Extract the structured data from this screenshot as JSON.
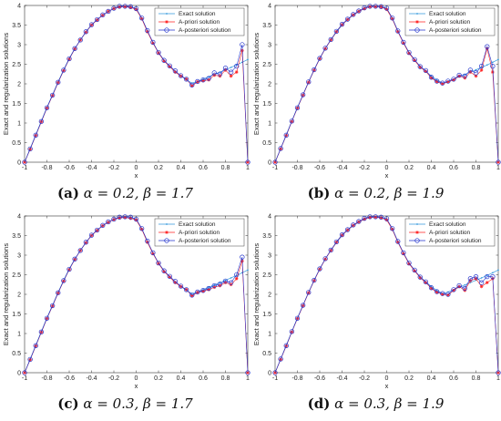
{
  "figure": {
    "captions": [
      {
        "tag": "(a)",
        "alpha_text": "α = 0.2,",
        "beta_text": "β = 1.7"
      },
      {
        "tag": "(b)",
        "alpha_text": "α = 0.2,",
        "beta_text": "β = 1.9"
      },
      {
        "tag": "(c)",
        "alpha_text": "α = 0.3,",
        "beta_text": "β = 1.7"
      },
      {
        "tag": "(d)",
        "alpha_text": "α = 0.3,",
        "beta_text": "β = 1.9"
      }
    ]
  },
  "colors": {
    "exact": "#3399dd",
    "apriori": "#ff2222",
    "aposteriori": "#2233cc",
    "axis": "#333333"
  },
  "chart_data": [
    {
      "type": "line",
      "xlabel": "x",
      "ylabel": "Exact and regularization solutions",
      "xlim": [
        -1,
        1
      ],
      "ylim": [
        0,
        4
      ],
      "xticks": [
        -1,
        -0.8,
        -0.6,
        -0.4,
        -0.2,
        0,
        0.2,
        0.4,
        0.6,
        0.8,
        1
      ],
      "yticks": [
        0,
        0.5,
        1,
        1.5,
        2,
        2.5,
        3,
        3.5,
        4
      ],
      "legend": "top-right",
      "x": [
        -1,
        -0.95,
        -0.9,
        -0.85,
        -0.8,
        -0.75,
        -0.7,
        -0.65,
        -0.6,
        -0.55,
        -0.5,
        -0.45,
        -0.4,
        -0.35,
        -0.3,
        -0.25,
        -0.2,
        -0.15,
        -0.1,
        -0.05,
        0,
        0.05,
        0.1,
        0.15,
        0.2,
        0.25,
        0.3,
        0.35,
        0.4,
        0.45,
        0.5,
        0.55,
        0.6,
        0.65,
        0.7,
        0.75,
        0.8,
        0.85,
        0.9,
        0.95,
        1
      ],
      "series": [
        {
          "name": "Exact solution",
          "values": [
            0,
            0.35,
            0.7,
            1.05,
            1.4,
            1.72,
            2.05,
            2.36,
            2.65,
            2.9,
            3.12,
            3.32,
            3.5,
            3.64,
            3.75,
            3.84,
            3.92,
            3.97,
            3.98,
            3.97,
            3.92,
            3.68,
            3.35,
            3.05,
            2.8,
            2.6,
            2.45,
            2.32,
            2.2,
            2.1,
            2.02,
            2.06,
            2.12,
            2.18,
            2.24,
            2.3,
            2.36,
            2.42,
            2.48,
            2.55,
            2.62
          ]
        },
        {
          "name": "A-priori solution",
          "values": [
            0,
            0.33,
            0.68,
            1.03,
            1.38,
            1.7,
            2.03,
            2.34,
            2.63,
            2.89,
            3.12,
            3.32,
            3.5,
            3.63,
            3.75,
            3.85,
            3.92,
            3.96,
            3.97,
            3.95,
            3.9,
            3.66,
            3.33,
            3.04,
            2.79,
            2.58,
            2.44,
            2.3,
            2.2,
            2.12,
            1.95,
            2.05,
            2.08,
            2.1,
            2.22,
            2.2,
            2.35,
            2.2,
            2.3,
            2.85,
            0
          ]
        },
        {
          "name": "A-posteriori solution",
          "values": [
            0,
            0.34,
            0.69,
            1.04,
            1.39,
            1.71,
            2.04,
            2.35,
            2.64,
            2.9,
            3.12,
            3.33,
            3.51,
            3.64,
            3.76,
            3.85,
            3.93,
            3.98,
            3.98,
            3.97,
            3.92,
            3.68,
            3.36,
            3.06,
            2.8,
            2.6,
            2.46,
            2.33,
            2.21,
            2.12,
            1.97,
            2.06,
            2.1,
            2.14,
            2.28,
            2.25,
            2.4,
            2.3,
            2.45,
            3.0,
            0
          ]
        }
      ]
    },
    {
      "type": "line",
      "xlabel": "x",
      "ylabel": "Exact and regularization solutions",
      "xlim": [
        -1,
        1
      ],
      "ylim": [
        0,
        4
      ],
      "xticks": [
        -1,
        -0.8,
        -0.6,
        -0.4,
        -0.2,
        0,
        0.2,
        0.4,
        0.6,
        0.8,
        1
      ],
      "yticks": [
        0,
        0.5,
        1,
        1.5,
        2,
        2.5,
        3,
        3.5,
        4
      ],
      "legend": "top-right",
      "x": [
        -1,
        -0.95,
        -0.9,
        -0.85,
        -0.8,
        -0.75,
        -0.7,
        -0.65,
        -0.6,
        -0.55,
        -0.5,
        -0.45,
        -0.4,
        -0.35,
        -0.3,
        -0.25,
        -0.2,
        -0.15,
        -0.1,
        -0.05,
        0,
        0.05,
        0.1,
        0.15,
        0.2,
        0.25,
        0.3,
        0.35,
        0.4,
        0.45,
        0.5,
        0.55,
        0.6,
        0.65,
        0.7,
        0.75,
        0.8,
        0.85,
        0.9,
        0.95,
        1
      ],
      "series": [
        {
          "name": "Exact solution",
          "values": [
            0,
            0.35,
            0.7,
            1.05,
            1.4,
            1.72,
            2.05,
            2.36,
            2.65,
            2.9,
            3.12,
            3.32,
            3.5,
            3.64,
            3.75,
            3.84,
            3.92,
            3.97,
            3.98,
            3.97,
            3.92,
            3.68,
            3.35,
            3.05,
            2.8,
            2.6,
            2.45,
            2.32,
            2.2,
            2.1,
            2.02,
            2.06,
            2.12,
            2.18,
            2.24,
            2.3,
            2.36,
            2.42,
            2.48,
            2.55,
            2.62
          ]
        },
        {
          "name": "A-priori solution",
          "values": [
            0,
            0.34,
            0.68,
            1.04,
            1.38,
            1.71,
            2.04,
            2.35,
            2.64,
            2.9,
            3.12,
            3.33,
            3.51,
            3.64,
            3.76,
            3.85,
            3.92,
            3.97,
            3.97,
            3.96,
            3.9,
            3.66,
            3.33,
            3.04,
            2.78,
            2.6,
            2.42,
            2.32,
            2.15,
            2.05,
            2.0,
            2.05,
            2.1,
            2.2,
            2.15,
            2.3,
            2.2,
            2.35,
            2.9,
            2.3,
            0
          ]
        },
        {
          "name": "A-posteriori solution",
          "values": [
            0,
            0.35,
            0.69,
            1.05,
            1.39,
            1.72,
            2.05,
            2.36,
            2.65,
            2.91,
            3.13,
            3.34,
            3.52,
            3.65,
            3.77,
            3.86,
            3.94,
            3.98,
            3.98,
            3.97,
            3.93,
            3.68,
            3.35,
            3.06,
            2.8,
            2.62,
            2.44,
            2.34,
            2.17,
            2.07,
            2.02,
            2.07,
            2.12,
            2.22,
            2.2,
            2.35,
            2.28,
            2.45,
            2.95,
            2.45,
            0
          ]
        }
      ]
    },
    {
      "type": "line",
      "xlabel": "x",
      "ylabel": "Exact and regularization solutions",
      "xlim": [
        -1,
        1
      ],
      "ylim": [
        0,
        4
      ],
      "xticks": [
        -1,
        -0.8,
        -0.6,
        -0.4,
        -0.2,
        0,
        0.2,
        0.4,
        0.6,
        0.8,
        1
      ],
      "yticks": [
        0,
        0.5,
        1,
        1.5,
        2,
        2.5,
        3,
        3.5,
        4
      ],
      "legend": "top-right",
      "x": [
        -1,
        -0.95,
        -0.9,
        -0.85,
        -0.8,
        -0.75,
        -0.7,
        -0.65,
        -0.6,
        -0.55,
        -0.5,
        -0.45,
        -0.4,
        -0.35,
        -0.3,
        -0.25,
        -0.2,
        -0.15,
        -0.1,
        -0.05,
        0,
        0.05,
        0.1,
        0.15,
        0.2,
        0.25,
        0.3,
        0.35,
        0.4,
        0.45,
        0.5,
        0.55,
        0.6,
        0.65,
        0.7,
        0.75,
        0.8,
        0.85,
        0.9,
        0.95,
        1
      ],
      "series": [
        {
          "name": "Exact solution",
          "values": [
            0,
            0.35,
            0.7,
            1.05,
            1.4,
            1.72,
            2.05,
            2.36,
            2.65,
            2.9,
            3.12,
            3.32,
            3.5,
            3.64,
            3.75,
            3.84,
            3.92,
            3.97,
            3.98,
            3.97,
            3.92,
            3.68,
            3.35,
            3.05,
            2.8,
            2.6,
            2.45,
            2.32,
            2.2,
            2.1,
            2.02,
            2.06,
            2.12,
            2.18,
            2.24,
            2.3,
            2.36,
            2.42,
            2.48,
            2.55,
            2.62
          ]
        },
        {
          "name": "A-priori solution",
          "values": [
            0,
            0.33,
            0.68,
            1.03,
            1.38,
            1.7,
            2.03,
            2.34,
            2.63,
            2.89,
            3.12,
            3.32,
            3.5,
            3.63,
            3.75,
            3.84,
            3.91,
            3.95,
            3.96,
            3.94,
            3.9,
            3.66,
            3.33,
            3.04,
            2.79,
            2.58,
            2.44,
            2.3,
            2.2,
            2.12,
            1.96,
            2.05,
            2.08,
            2.12,
            2.18,
            2.22,
            2.3,
            2.25,
            2.4,
            2.85,
            0
          ]
        },
        {
          "name": "A-posteriori solution",
          "values": [
            0,
            0.34,
            0.69,
            1.04,
            1.39,
            1.71,
            2.04,
            2.35,
            2.64,
            2.9,
            3.12,
            3.33,
            3.51,
            3.64,
            3.76,
            3.85,
            3.92,
            3.97,
            3.98,
            3.97,
            3.92,
            3.68,
            3.36,
            3.06,
            2.8,
            2.6,
            2.46,
            2.33,
            2.21,
            2.12,
            1.98,
            2.06,
            2.1,
            2.15,
            2.22,
            2.26,
            2.34,
            2.3,
            2.5,
            2.95,
            0
          ]
        }
      ]
    },
    {
      "type": "line",
      "xlabel": "x",
      "ylabel": "Exact and regularization solutions",
      "xlim": [
        -1,
        1
      ],
      "ylim": [
        0,
        4
      ],
      "xticks": [
        -1,
        -0.8,
        -0.6,
        -0.4,
        -0.2,
        0,
        0.2,
        0.4,
        0.6,
        0.8,
        1
      ],
      "yticks": [
        0,
        0.5,
        1,
        1.5,
        2,
        2.5,
        3,
        3.5,
        4
      ],
      "legend": "top-right",
      "x": [
        -1,
        -0.95,
        -0.9,
        -0.85,
        -0.8,
        -0.75,
        -0.7,
        -0.65,
        -0.6,
        -0.55,
        -0.5,
        -0.45,
        -0.4,
        -0.35,
        -0.3,
        -0.25,
        -0.2,
        -0.15,
        -0.1,
        -0.05,
        0,
        0.05,
        0.1,
        0.15,
        0.2,
        0.25,
        0.3,
        0.35,
        0.4,
        0.45,
        0.5,
        0.55,
        0.6,
        0.65,
        0.7,
        0.75,
        0.8,
        0.85,
        0.9,
        0.95,
        1
      ],
      "series": [
        {
          "name": "Exact solution",
          "values": [
            0,
            0.35,
            0.7,
            1.05,
            1.4,
            1.72,
            2.05,
            2.36,
            2.65,
            2.9,
            3.12,
            3.32,
            3.5,
            3.64,
            3.75,
            3.84,
            3.92,
            3.97,
            3.98,
            3.97,
            3.92,
            3.68,
            3.35,
            3.05,
            2.8,
            2.6,
            2.45,
            2.32,
            2.2,
            2.1,
            2.02,
            2.06,
            2.12,
            2.18,
            2.24,
            2.3,
            2.36,
            2.42,
            2.48,
            2.55,
            2.62
          ]
        },
        {
          "name": "A-priori solution",
          "values": [
            0,
            0.34,
            0.68,
            1.04,
            1.38,
            1.71,
            2.04,
            2.35,
            2.64,
            2.9,
            3.12,
            3.33,
            3.51,
            3.64,
            3.76,
            3.85,
            3.92,
            3.96,
            3.97,
            3.95,
            3.9,
            3.66,
            3.33,
            3.04,
            2.78,
            2.6,
            2.42,
            2.3,
            2.15,
            2.05,
            2.0,
            1.98,
            2.1,
            2.2,
            2.1,
            2.35,
            2.4,
            2.2,
            2.3,
            2.4,
            0
          ]
        },
        {
          "name": "A-posteriori solution",
          "values": [
            0,
            0.35,
            0.69,
            1.05,
            1.39,
            1.72,
            2.05,
            2.36,
            2.65,
            2.91,
            3.13,
            3.34,
            3.52,
            3.65,
            3.77,
            3.86,
            3.94,
            3.98,
            3.98,
            3.97,
            3.93,
            3.68,
            3.35,
            3.06,
            2.8,
            2.62,
            2.44,
            2.32,
            2.17,
            2.07,
            2.02,
            2.0,
            2.12,
            2.22,
            2.15,
            2.4,
            2.45,
            2.3,
            2.45,
            2.45,
            0
          ]
        }
      ]
    }
  ]
}
